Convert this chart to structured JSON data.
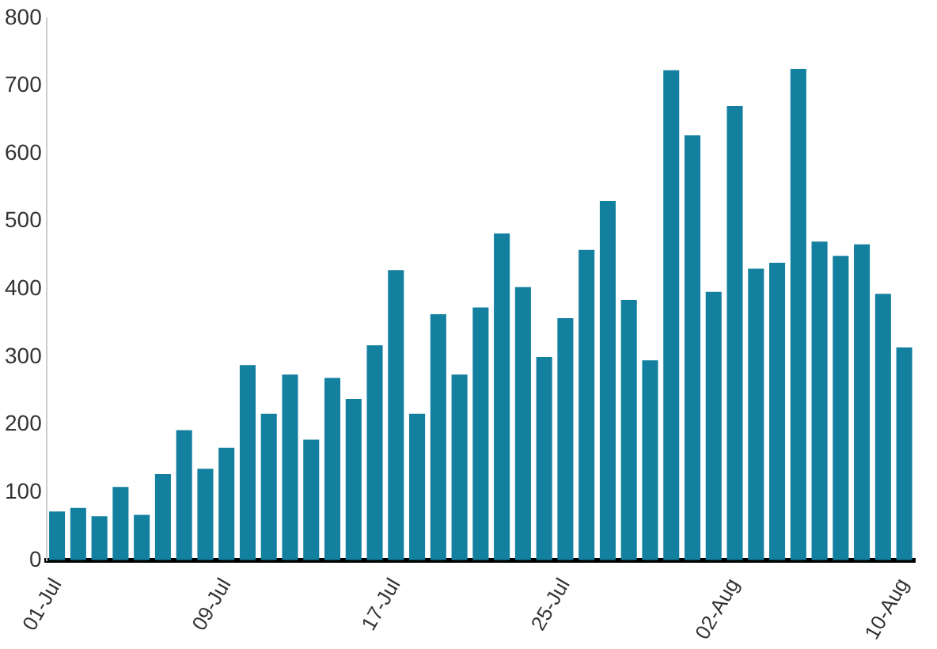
{
  "chart_data": {
    "type": "bar",
    "categories": [
      "01-Jul",
      null,
      null,
      null,
      null,
      null,
      null,
      null,
      "09-Jul",
      null,
      null,
      null,
      null,
      null,
      null,
      null,
      "17-Jul",
      null,
      null,
      null,
      null,
      null,
      null,
      null,
      "25-Jul",
      null,
      null,
      null,
      null,
      null,
      null,
      null,
      "02-Aug",
      null,
      null,
      null,
      null,
      null,
      null,
      null,
      "10-Aug"
    ],
    "values": [
      72,
      77,
      65,
      108,
      67,
      127,
      192,
      135,
      166,
      288,
      216,
      274,
      178,
      269,
      238,
      317,
      428,
      216,
      363,
      274,
      373,
      482,
      403,
      300,
      357,
      458,
      530,
      384,
      295,
      723,
      627,
      396,
      670,
      430,
      439,
      725,
      470,
      449,
      466,
      393,
      314
    ],
    "color": "#14809f",
    "ylim": [
      0,
      800
    ],
    "yticks": [
      0,
      100,
      200,
      300,
      400,
      500,
      600,
      700,
      800
    ],
    "grid": false,
    "legend": false
  }
}
